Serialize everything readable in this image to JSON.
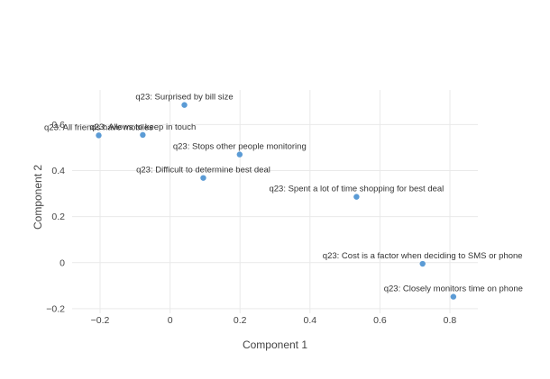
{
  "chart_data": {
    "type": "scatter",
    "title": "",
    "xlabel": "Component 1",
    "ylabel": "Component 2",
    "xlim": [
      -0.28,
      0.88
    ],
    "ylim": [
      -0.22,
      0.75
    ],
    "x_ticks": [
      -0.2,
      0,
      0.2,
      0.4,
      0.6,
      0.8
    ],
    "x_tick_labels": [
      "−0.2",
      "0",
      "0.2",
      "0.4",
      "0.6",
      "0.8"
    ],
    "y_ticks": [
      -0.2,
      0,
      0.2,
      0.4,
      0.6
    ],
    "y_tick_labels": [
      "−0.2",
      "0",
      "0.2",
      "0.4",
      "0.6"
    ],
    "grid": true,
    "marker_color": "#5b9bd5",
    "points": [
      {
        "label": "q23: Surprised by bill size",
        "x": 0.041,
        "y": 0.685
      },
      {
        "label": "q23: All friends have mobiles",
        "x": -0.204,
        "y": 0.553
      },
      {
        "label": "q23: Allows to keep in touch",
        "x": -0.078,
        "y": 0.555
      },
      {
        "label": "q23: Stops other people monitoring",
        "x": 0.199,
        "y": 0.47
      },
      {
        "label": "q23: Difficult to determine best deal",
        "x": 0.095,
        "y": 0.368
      },
      {
        "label": "q23: Spent a lot of time shopping for best deal",
        "x": 0.533,
        "y": 0.286
      },
      {
        "label": "q23: Cost is a factor when deciding to SMS or phone",
        "x": 0.722,
        "y": -0.005
      },
      {
        "label": "q23: Closely monitors time on phone",
        "x": 0.81,
        "y": -0.148
      }
    ]
  }
}
